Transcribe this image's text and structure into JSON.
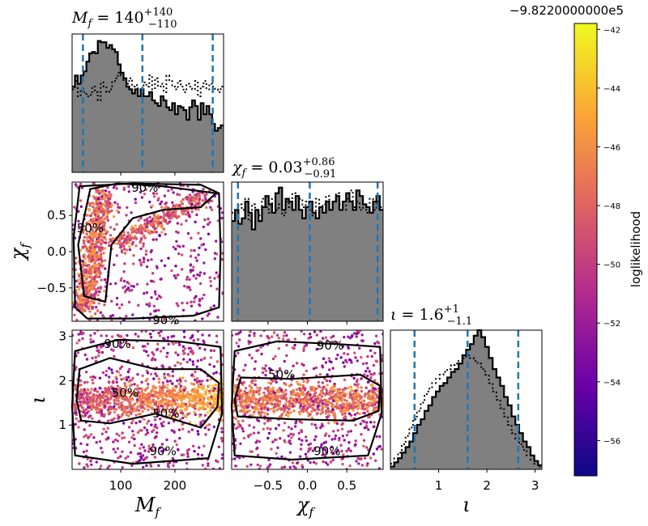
{
  "chart_data": {
    "type": "corner",
    "parameters": [
      {
        "key": "Mf",
        "symbol": "M",
        "sub": "f",
        "range": [
          10,
          290
        ],
        "ticks": [
          100,
          200
        ],
        "title": {
          "median": "140",
          "plus": "+140",
          "minus": "−110"
        },
        "quantiles": [
          30,
          140,
          270
        ]
      },
      {
        "key": "chif",
        "symbol": "χ",
        "sub": "f",
        "range": [
          -0.96,
          0.96
        ],
        "ticks": [
          -0.5,
          0.0,
          0.5
        ],
        "tick_labels": [
          "−0.5",
          "0.0",
          "0.5"
        ],
        "title": {
          "median": "0.03",
          "plus": "+0.86",
          "minus": "−0.91"
        },
        "quantiles": [
          -0.88,
          0.03,
          0.89
        ]
      },
      {
        "key": "iota",
        "symbol": "ι",
        "sub": "",
        "range": [
          0,
          3.14
        ],
        "ticks": [
          1,
          2,
          3
        ],
        "title": {
          "median": "1.6",
          "plus": "+1",
          "minus": "−1.1"
        },
        "quantiles": [
          0.5,
          1.6,
          2.65
        ]
      }
    ],
    "histograms": {
      "Mf": {
        "solid": [
          0.62,
          0.7,
          0.64,
          0.7,
          0.73,
          0.8,
          0.86,
          0.87,
          0.86,
          0.95,
          0.94,
          0.94,
          0.9,
          0.92,
          0.89,
          0.87,
          0.78,
          0.72,
          0.68,
          0.62,
          0.6,
          0.57,
          0.6,
          0.55,
          0.6,
          0.55,
          0.55,
          0.58,
          0.52,
          0.5,
          0.48,
          0.55,
          0.52,
          0.47,
          0.45,
          0.5,
          0.42,
          0.48,
          0.47,
          0.45,
          0.38,
          0.47,
          0.52,
          0.48,
          0.38,
          0.5,
          0.42,
          0.48,
          0.42,
          0.35,
          0.3,
          0.32,
          0.34
        ],
        "dotted": [
          0.6,
          0.66,
          0.55,
          0.6,
          0.58,
          0.55,
          0.56,
          0.62,
          0.58,
          0.52,
          0.65,
          0.62,
          0.58,
          0.6,
          0.66,
          0.68,
          0.72,
          0.7,
          0.66,
          0.64,
          0.68,
          0.62,
          0.63,
          0.6,
          0.58,
          0.65,
          0.62,
          0.7,
          0.6,
          0.68,
          0.62,
          0.64,
          0.58,
          0.7,
          0.66,
          0.62,
          0.6,
          0.66,
          0.62,
          0.58,
          0.64,
          0.62,
          0.6,
          0.66,
          0.55,
          0.62,
          0.66,
          0.6,
          0.64,
          0.62,
          0.6,
          0.58,
          0.62
        ]
      },
      "chif": {
        "solid": [
          0.72,
          0.8,
          0.7,
          0.74,
          0.86,
          0.78,
          0.66,
          0.8,
          0.72,
          0.82,
          0.9,
          0.84,
          0.78,
          0.92,
          0.96,
          0.8,
          0.88,
          0.86,
          0.8,
          0.9,
          0.8,
          0.74,
          0.82,
          0.86,
          0.78,
          0.74,
          0.82,
          0.78,
          0.86,
          0.8,
          0.86,
          0.9,
          0.8,
          0.86,
          0.92,
          0.86,
          0.8,
          0.94,
          0.9,
          0.84,
          0.82,
          0.78,
          0.86,
          0.9,
          0.8
        ],
        "dotted": [
          0.78,
          0.74,
          0.84,
          0.8,
          0.88,
          0.72,
          0.84,
          0.78,
          0.76,
          0.88,
          0.82,
          0.78,
          0.88,
          0.8,
          0.84,
          0.76,
          0.86,
          0.82,
          0.92,
          0.8,
          0.88,
          0.82,
          0.86,
          0.8,
          0.76,
          0.88,
          0.82,
          0.84,
          0.9,
          0.8,
          0.86,
          0.92,
          0.84,
          0.8,
          0.88,
          0.94,
          0.82,
          0.86,
          0.8,
          0.84,
          0.78,
          0.88,
          0.8,
          0.86,
          0.82
        ]
      },
      "iota": {
        "solid": [
          0.02,
          0.05,
          0.08,
          0.12,
          0.16,
          0.2,
          0.26,
          0.32,
          0.36,
          0.42,
          0.46,
          0.52,
          0.56,
          0.6,
          0.62,
          0.66,
          0.7,
          0.72,
          0.76,
          0.82,
          0.86,
          0.9,
          0.96,
          1.0,
          0.95,
          0.88,
          0.8,
          0.72,
          0.66,
          0.6,
          0.52,
          0.46,
          0.38,
          0.32,
          0.26,
          0.2,
          0.16,
          0.1,
          0.06,
          0.03
        ],
        "dotted": [
          0.04,
          0.08,
          0.12,
          0.18,
          0.24,
          0.3,
          0.36,
          0.42,
          0.48,
          0.54,
          0.58,
          0.62,
          0.65,
          0.68,
          0.7,
          0.72,
          0.75,
          0.76,
          0.78,
          0.8,
          0.82,
          0.8,
          0.78,
          0.76,
          0.72,
          0.68,
          0.62,
          0.56,
          0.5,
          0.44,
          0.38,
          0.32,
          0.26,
          0.22,
          0.18,
          0.14,
          0.1,
          0.07,
          0.04,
          0.02
        ]
      }
    },
    "contour_levels": [
      "50%",
      "90%"
    ],
    "axis_labels": {
      "x": [
        "M_f",
        "χ_f",
        "ι"
      ],
      "y": [
        "χ_f",
        "ι"
      ]
    },
    "colorbar": {
      "label": "loglikelihood",
      "offset_text": "−9.8220000000e5",
      "range": [
        -57.2,
        -41.8
      ],
      "ticks": [
        -56,
        -54,
        -52,
        -50,
        -48,
        -46,
        -44,
        -42
      ],
      "tick_labels": [
        "−56",
        "−54",
        "−52",
        "−50",
        "−48",
        "−46",
        "−44",
        "−42"
      ],
      "colormap": "plasma",
      "colors": [
        "#0d0887",
        "#6a00a8",
        "#b12a90",
        "#e16462",
        "#fca636",
        "#f0f921"
      ]
    },
    "colors": {
      "hist_fill": "#808080",
      "quantile_line": "#1f77b4",
      "contour": "#000000"
    }
  }
}
